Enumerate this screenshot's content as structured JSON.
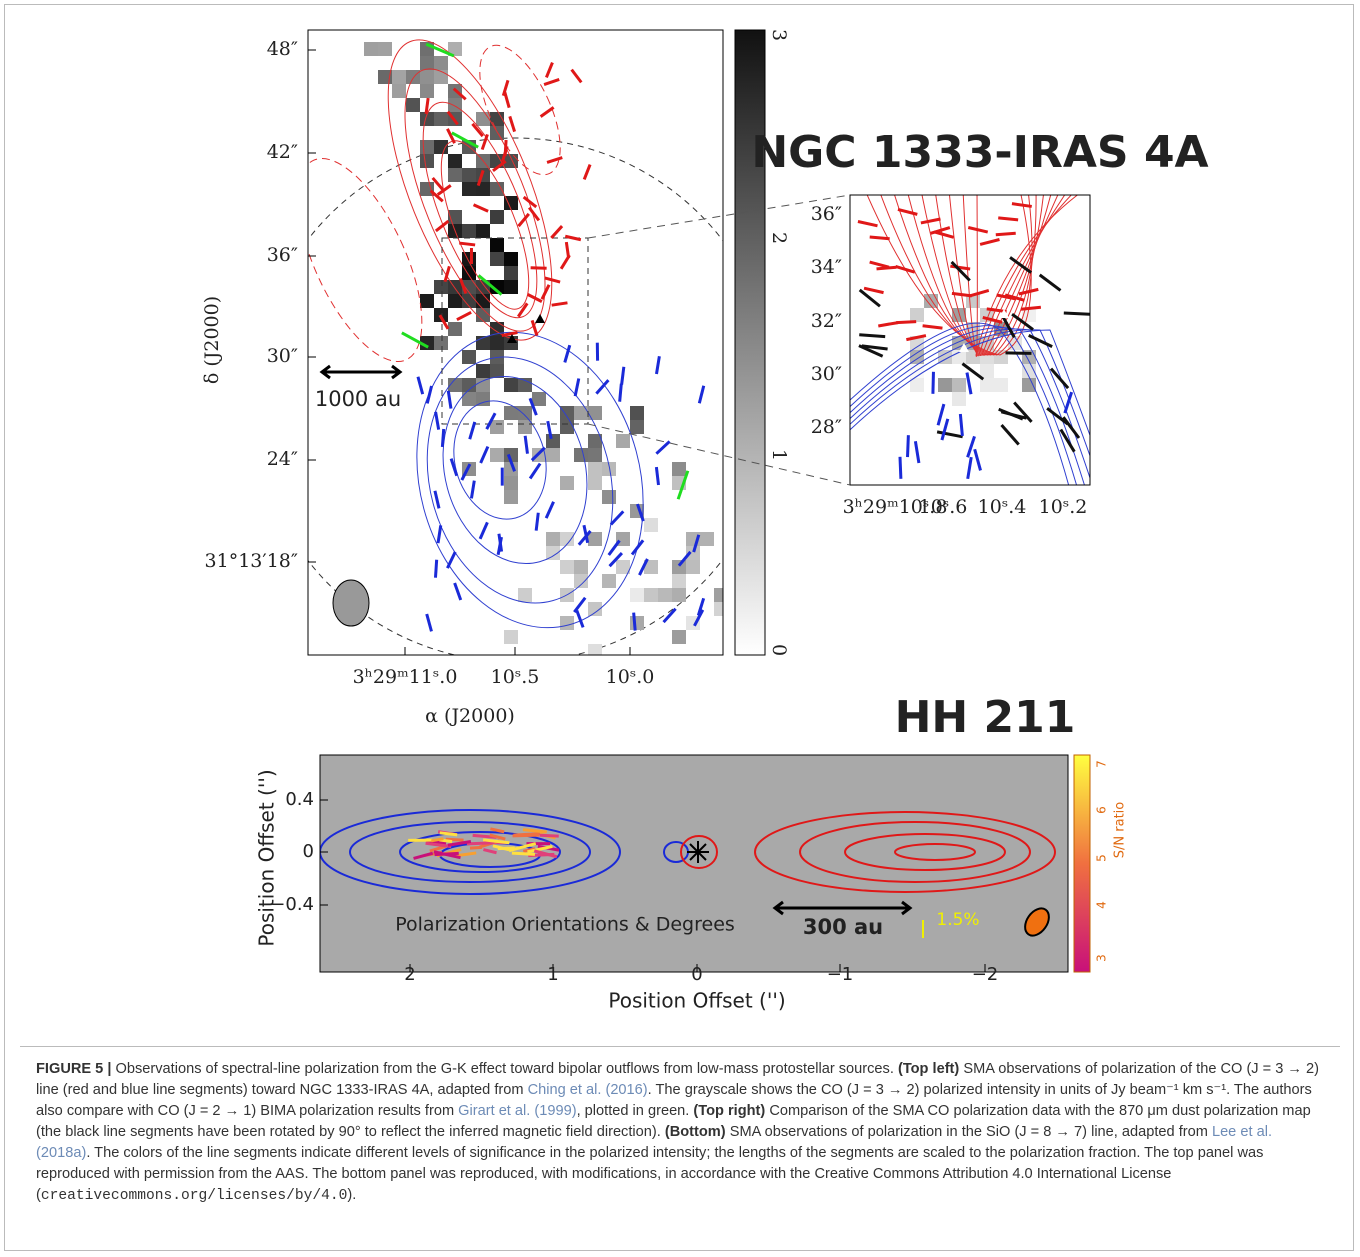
{
  "figure": {
    "top_left": {
      "yticks": [
        "48″",
        "42″",
        "36″",
        "30″",
        "24″",
        "31°13′18″"
      ],
      "xticks": [
        "3ʰ29ᵐ11ˢ.0",
        "10ˢ.5",
        "10ˢ.0"
      ],
      "xlabel": "α (J2000)",
      "ylabel": "δ (J2000)",
      "scale_bar": "1000 au",
      "colorbar_ticks": [
        "0",
        "1",
        "2",
        "3"
      ]
    },
    "title_top": "NGC 1333-IRAS 4A",
    "top_right": {
      "yticks": [
        "36″",
        "34″",
        "32″",
        "30″",
        "28″"
      ],
      "xticks": [
        "3ʰ29ᵐ10ˢ.8",
        "10ˢ.6",
        "10ˢ.4",
        "10ˢ.2"
      ]
    },
    "title_bottom": "HH 211",
    "bottom": {
      "yticks": [
        "0.4",
        "0",
        "−0.4"
      ],
      "xticks": [
        "2",
        "1",
        "0",
        "−1",
        "−2"
      ],
      "xlabel": "Position Offset ('')",
      "ylabel": "Position Offset ('')",
      "annotation": "Polarization Orientations & Degrees",
      "scale_bar": "300 au",
      "pol_scale": "1.5%",
      "colorbar_ticks": [
        "3",
        "4",
        "5",
        "6",
        "7"
      ],
      "colorbar_label": "S/N ratio"
    }
  },
  "caption": [
    {
      "text": "FIGURE 5 |",
      "style": "bold"
    },
    {
      "text": " Observations of spectral-line polarization from the G-K effect toward bipolar outflows from low-mass protostellar sources. "
    },
    {
      "text": "(Top left)",
      "style": "bold"
    },
    {
      "text": " SMA observations of polarization of the CO (J = 3 → 2) line (red and blue line segments) toward NGC 1333-IRAS 4A, adapted from "
    },
    {
      "text": "Ching et al. (2016)",
      "style": "link"
    },
    {
      "text": ". The grayscale shows the CO (J = 3 → 2) polarized intensity in units of Jy beam⁻¹ km s⁻¹. The authors also compare with CO (J = 2 → 1) BIMA polarization results from "
    },
    {
      "text": "Girart et al. (1999)",
      "style": "link"
    },
    {
      "text": ", plotted in green. "
    },
    {
      "text": "(Top right)",
      "style": "bold"
    },
    {
      "text": " Comparison of the SMA CO polarization data with the 870 μm dust polarization map (the black line segments have been rotated by 90° to reflect the inferred magnetic field direction). "
    },
    {
      "text": "(Bottom)",
      "style": "bold"
    },
    {
      "text": " SMA observations of polarization in the SiO (J = 8 → 7) line, adapted from "
    },
    {
      "text": "Lee et al. (2018a)",
      "style": "link"
    },
    {
      "text": ". The colors of the line segments indicate different levels of significance in the polarized intensity; the lengths of the segments are scaled to the polarization fraction. The top panel was reproduced with permission from the AAS. The bottom panel was reproduced, with modifications, in accordance with the Creative Commons Attribution 4.0 International License ("
    },
    {
      "text": "creativecommons.org/licenses/by/4.0",
      "style": "mono"
    },
    {
      "text": ")."
    }
  ]
}
